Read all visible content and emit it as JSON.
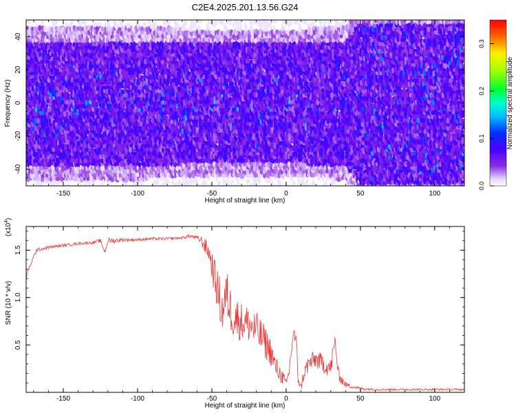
{
  "figure_title": "C2E4.2025.201.13.56.G24",
  "chart_data": [
    {
      "type": "heatmap",
      "title": "C2E4.2025.201.13.56.G24",
      "xlabel": "Height of straight line (km)",
      "ylabel": "Frequency (Hz)",
      "xlim": [
        -175,
        120
      ],
      "ylim": [
        -50,
        50
      ],
      "xticks": [
        -150,
        -100,
        -50,
        0,
        50,
        100
      ],
      "xtick_labels": [
        "-150",
        "-100",
        "-50",
        "0",
        "50",
        "100"
      ],
      "yticks": [
        -40,
        -20,
        0,
        20,
        40
      ],
      "ytick_labels": [
        "-40",
        "-20",
        "0",
        "20",
        "40"
      ],
      "colorbar": {
        "label": "Normalized spectral amplitude",
        "range": [
          0.0,
          0.35
        ],
        "ticks": [
          0.0,
          0.1,
          0.2,
          0.3
        ],
        "tick_labels": [
          "0.0",
          "0.1",
          "0.2",
          "0.3"
        ]
      },
      "frequency_band_halfwidth_profile": {
        "x": [
          -175,
          -100,
          -50,
          0,
          40,
          50,
          120
        ],
        "halfwidth": [
          40,
          40,
          38,
          38,
          40,
          50,
          50
        ]
      },
      "grid": false
    },
    {
      "type": "line",
      "xlabel": "Height of straight line (km)",
      "ylabel": "SNR (10 * v/v)",
      "y_multiplier": "(x10",
      "y_multiplier_exp": "4",
      "xlim": [
        -175,
        120
      ],
      "ylim": [
        0,
        1.75
      ],
      "xticks": [
        -150,
        -100,
        -50,
        0,
        50,
        100
      ],
      "xtick_labels": [
        "-150",
        "-100",
        "-50",
        "0",
        "50",
        "100"
      ],
      "yticks": [
        0.5,
        1.0,
        1.5
      ],
      "ytick_labels": [
        "0.5",
        "1.0",
        "1.5"
      ],
      "line_color": "#ee3333",
      "series": [
        {
          "x": [
            -175,
            -172,
            -168,
            -160,
            -150,
            -140,
            -130,
            -125,
            -122,
            -120,
            -115,
            -110,
            -100,
            -90,
            -80,
            -70,
            -65,
            -60,
            -57,
            -55,
            -52,
            -50,
            -48,
            -45,
            -43,
            -40,
            -38,
            -35,
            -30,
            -25,
            -20,
            -15,
            -10,
            -8,
            -5,
            -2,
            0,
            2,
            5,
            7,
            8,
            10,
            12,
            15,
            20,
            25,
            30,
            33,
            35,
            38,
            40,
            45,
            50,
            60,
            80,
            100,
            120
          ],
          "values": [
            1.22,
            1.35,
            1.5,
            1.53,
            1.55,
            1.57,
            1.58,
            1.6,
            1.48,
            1.6,
            1.6,
            1.61,
            1.61,
            1.62,
            1.62,
            1.63,
            1.65,
            1.63,
            1.6,
            1.55,
            1.48,
            1.35,
            1.2,
            1.0,
            0.85,
            1.05,
            0.9,
            0.8,
            0.75,
            0.72,
            0.65,
            0.55,
            0.42,
            0.3,
            0.22,
            0.15,
            0.08,
            0.22,
            0.65,
            0.5,
            0.15,
            0.05,
            0.2,
            0.3,
            0.35,
            0.3,
            0.25,
            0.55,
            0.2,
            0.12,
            0.08,
            0.06,
            0.04,
            0.03,
            0.03,
            0.03,
            0.03
          ],
          "noise": [
            0.02,
            0.02,
            0.02,
            0.015,
            0.015,
            0.015,
            0.015,
            0.02,
            0.02,
            0.03,
            0.03,
            0.02,
            0.015,
            0.015,
            0.015,
            0.015,
            0.02,
            0.02,
            0.05,
            0.08,
            0.1,
            0.15,
            0.2,
            0.25,
            0.25,
            0.25,
            0.25,
            0.25,
            0.2,
            0.2,
            0.2,
            0.18,
            0.15,
            0.12,
            0.1,
            0.08,
            0.05,
            0.08,
            0.08,
            0.08,
            0.07,
            0.04,
            0.08,
            0.1,
            0.1,
            0.1,
            0.1,
            0.08,
            0.07,
            0.05,
            0.03,
            0.02,
            0.015,
            0.01,
            0.01,
            0.01,
            0.01
          ]
        }
      ],
      "grid": false
    }
  ]
}
